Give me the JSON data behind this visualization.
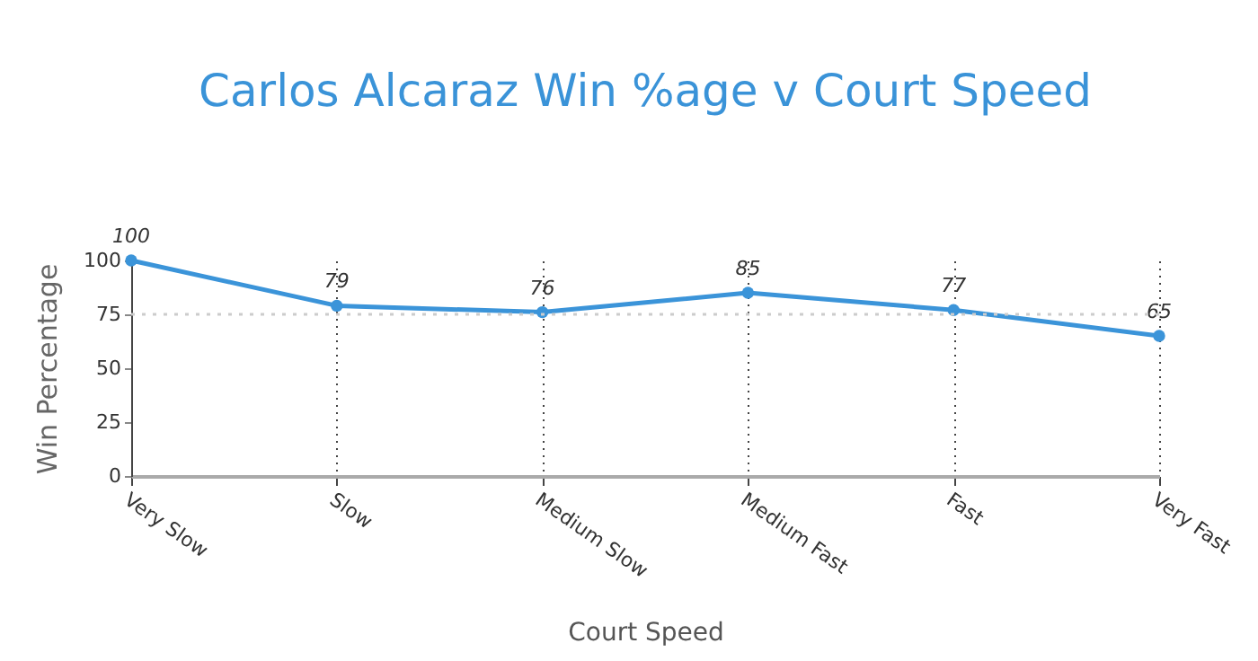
{
  "chart_data": {
    "type": "line",
    "title": "Carlos Alcaraz Win %age v Court Speed",
    "xlabel": "Court Speed",
    "ylabel": "Win Percentage",
    "categories": [
      "Very Slow",
      "Slow",
      "Medium Slow",
      "Medium Fast",
      "Fast",
      "Very Fast"
    ],
    "series": [
      {
        "color": "#3b94d9",
        "values": [
          100,
          79,
          76,
          85,
          77,
          65
        ]
      }
    ],
    "ylim": [
      0,
      100
    ],
    "yticks": [
      0,
      25,
      50,
      75,
      100
    ],
    "grid": "x",
    "marker": "circle",
    "line_style": "solid",
    "data_labels": true,
    "ref_lines": [
      {
        "axis": "y",
        "value": 75,
        "color": "#cccccc",
        "line_style": "dotted"
      }
    ]
  }
}
